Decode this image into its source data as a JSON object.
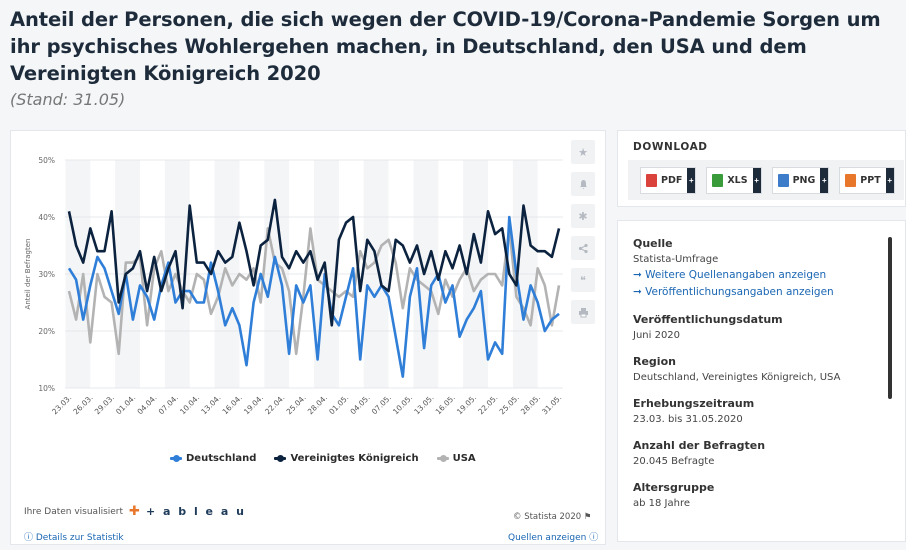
{
  "header": {
    "title": "Anteil der Personen, die sich wegen der COVID-19/Corona-Pandemie Sorgen um ihr psychisches Wohlergehen machen, in Deutschland, den USA und dem Vereinigten Königreich 2020",
    "subtitle": "(Stand: 31.05)"
  },
  "chart_data": {
    "type": "line",
    "ylabel": "Anteil der Befragten",
    "xlabel": "",
    "ylim": [
      10,
      50
    ],
    "yticks": [
      "10%",
      "20%",
      "30%",
      "40%",
      "50%"
    ],
    "x": [
      "23.03.",
      "24.03.",
      "25.03.",
      "26.03.",
      "27.03.",
      "28.03.",
      "29.03.",
      "30.03.",
      "31.03.",
      "01.04.",
      "02.04.",
      "03.04.",
      "04.04.",
      "05.04.",
      "06.04.",
      "07.04.",
      "08.04.",
      "09.04.",
      "10.04.",
      "11.04.",
      "12.04.",
      "13.04.",
      "14.04.",
      "15.04.",
      "16.04.",
      "17.04.",
      "18.04.",
      "19.04.",
      "20.04.",
      "21.04.",
      "22.04.",
      "23.04.",
      "24.04.",
      "25.04.",
      "26.04.",
      "27.04.",
      "28.04.",
      "29.04.",
      "30.04.",
      "01.05.",
      "02.05.",
      "03.05.",
      "04.05.",
      "05.05.",
      "06.05.",
      "07.05.",
      "08.05.",
      "09.05.",
      "10.05.",
      "11.05.",
      "12.05.",
      "13.05.",
      "14.05.",
      "15.05.",
      "16.05.",
      "17.05.",
      "18.05.",
      "19.05.",
      "20.05.",
      "21.05.",
      "22.05.",
      "23.05.",
      "24.05.",
      "25.05.",
      "26.05.",
      "27.05.",
      "28.05.",
      "29.05.",
      "30.05.",
      "31.05."
    ],
    "xticks": [
      "23.03.",
      "26.03.",
      "29.03.",
      "01.04.",
      "04.04.",
      "07.04.",
      "10.04.",
      "13.04.",
      "16.04.",
      "19.04.",
      "22.04.",
      "25.04.",
      "28.04.",
      "01.05.",
      "04.05.",
      "07.05.",
      "10.05.",
      "13.05.",
      "16.05.",
      "19.05.",
      "22.05.",
      "25.05.",
      "28.05.",
      "31.05."
    ],
    "series": [
      {
        "name": "Deutschland",
        "color": "#2f7ed8",
        "values": [
          31,
          29,
          22,
          28,
          33,
          31,
          27,
          23,
          30,
          22,
          28,
          26,
          22,
          28,
          32,
          25,
          27,
          27,
          25,
          25,
          32,
          27,
          21,
          24,
          21,
          14,
          25,
          30,
          26,
          33,
          28,
          16,
          28,
          25,
          28,
          15,
          30,
          23,
          21,
          26,
          31,
          15,
          28,
          26,
          28,
          26,
          19,
          12,
          26,
          31,
          17,
          28,
          30,
          25,
          28,
          19,
          22,
          24,
          27,
          15,
          18,
          16,
          40,
          30,
          22,
          28,
          25,
          20,
          22,
          23
        ]
      },
      {
        "name": "Vereinigtes Königreich",
        "color": "#0c2340",
        "values": [
          41,
          35,
          32,
          38,
          34,
          34,
          41,
          25,
          30,
          31,
          34,
          27,
          33,
          27,
          31,
          34,
          24,
          42,
          32,
          32,
          30,
          34,
          32,
          33,
          39,
          34,
          28,
          35,
          36,
          43,
          33,
          31,
          34,
          32,
          34,
          29,
          32,
          21,
          36,
          39,
          40,
          27,
          36,
          34,
          28,
          27,
          36,
          35,
          32,
          35,
          30,
          34,
          29,
          34,
          31,
          35,
          30,
          37,
          32,
          41,
          37,
          38,
          30,
          28,
          42,
          35,
          34,
          34,
          33,
          38
        ]
      },
      {
        "name": "USA",
        "color": "#b3b3b3",
        "values": [
          27,
          22,
          30,
          18,
          30,
          26,
          25,
          16,
          32,
          32,
          33,
          21,
          31,
          34,
          27,
          30,
          27,
          25,
          30,
          29,
          23,
          26,
          31,
          28,
          30,
          29,
          31,
          25,
          38,
          32,
          31,
          27,
          16,
          26,
          38,
          29,
          28,
          27,
          26,
          27,
          26,
          34,
          31,
          32,
          35,
          36,
          32,
          24,
          31,
          29,
          28,
          27,
          23,
          29,
          26,
          29,
          31,
          27,
          29,
          30,
          30,
          28,
          38,
          26,
          24,
          21,
          31,
          28,
          21,
          28
        ]
      }
    ],
    "legend_position": "bottom",
    "grid": true
  },
  "side_icons": [
    "star-icon",
    "bell-icon",
    "gear-icon",
    "share-icon",
    "quote-icon",
    "print-icon"
  ],
  "footer": {
    "visualized_label": "Ihre Daten visualisiert",
    "tableau_text": "+ a b l e a u",
    "copyright": "© Statista 2020",
    "details_link": "ⓘ Details zur Statistik",
    "sources_link": "Quellen anzeigen ⓘ"
  },
  "download": {
    "title": "DOWNLOAD",
    "buttons": [
      {
        "label": "PDF",
        "color": "#d9433b"
      },
      {
        "label": "XLS",
        "color": "#3a9b3a"
      },
      {
        "label": "PNG",
        "color": "#3d7cc9"
      },
      {
        "label": "PPT",
        "color": "#e8762b"
      }
    ]
  },
  "info": {
    "source_h": "Quelle",
    "source_v": "Statista-Umfrage",
    "link1": "➞ Weitere Quellenangaben anzeigen",
    "link2": "➞ Veröffentlichungsangaben anzeigen",
    "pubdate_h": "Veröffentlichungsdatum",
    "pubdate_v": "Juni 2020",
    "region_h": "Region",
    "region_v": "Deutschland, Vereinigtes Königreich, USA",
    "period_h": "Erhebungszeitraum",
    "period_v": "23.03. bis 31.05.2020",
    "count_h": "Anzahl der Befragten",
    "count_v": "20.045 Befragte",
    "age_h": "Altersgruppe",
    "age_v": "ab 18 Jahre"
  }
}
